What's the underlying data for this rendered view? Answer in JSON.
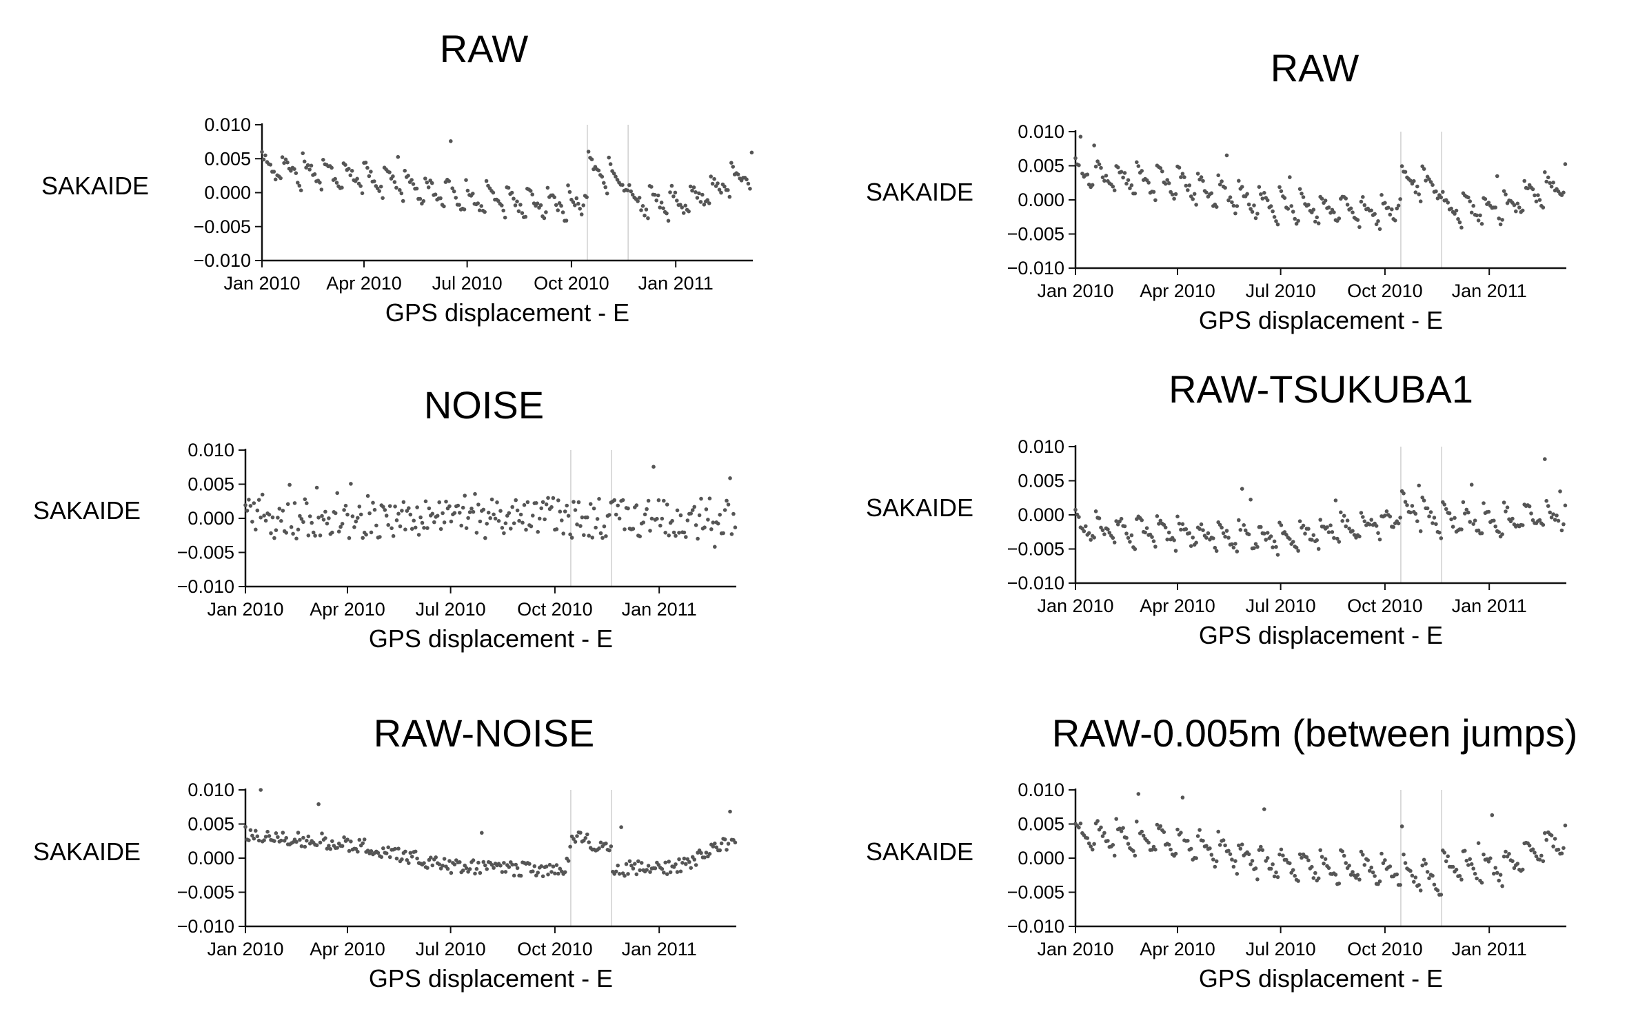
{
  "figure": {
    "panels": [
      {
        "id": "p1",
        "title": "RAW",
        "series_label": "SAKAIDE",
        "xlabel": "GPS displacement - E",
        "variant": "raw"
      },
      {
        "id": "p2",
        "title": "RAW",
        "series_label": "SAKAIDE",
        "xlabel": "GPS displacement - E",
        "variant": "raw"
      },
      {
        "id": "p3",
        "title": "NOISE",
        "series_label": "SAKAIDE",
        "xlabel": "GPS displacement - E",
        "variant": "noise"
      },
      {
        "id": "p4",
        "title": "RAW-TSUKUBA1",
        "series_label": "SAKAIDE",
        "xlabel": "GPS displacement - E",
        "variant": "tsukuba"
      },
      {
        "id": "p5",
        "title": "RAW-NOISE",
        "series_label": "SAKAIDE",
        "xlabel": "GPS displacement - E",
        "variant": "rawnoise"
      },
      {
        "id": "p6",
        "title": "RAW-0.005m (between jumps)",
        "series_label": "SAKAIDE",
        "xlabel": "GPS displacement - E",
        "variant": "shifted"
      }
    ]
  },
  "chart_data": [
    {
      "type": "scatter",
      "title": "RAW",
      "series": [
        {
          "name": "SAKAIDE"
        }
      ],
      "xlabel": "GPS displacement - E",
      "x_range": [
        "2010-01-01",
        "2011-03-10"
      ],
      "x_ticks": [
        "Jan 2010",
        "Apr 2010",
        "Jul 2010",
        "Oct 2010",
        "Jan 2011"
      ],
      "ylim": [
        -0.01,
        0.01
      ],
      "y_ticks": [
        "0.010",
        "0.005",
        "0.000",
        "−0.005",
        "−0.010"
      ],
      "jump_lines": [
        "2010-10-15",
        "2010-11-20"
      ],
      "trend": [
        {
          "date": "2010-01-01",
          "value": 0.0035
        },
        {
          "date": "2010-04-01",
          "value": 0.0022
        },
        {
          "date": "2010-07-01",
          "value": -0.0012
        },
        {
          "date": "2010-10-10",
          "value": -0.002
        },
        {
          "date": "2010-10-16",
          "value": 0.003
        },
        {
          "date": "2010-11-20",
          "value": 0.0015
        },
        {
          "date": "2010-11-21",
          "value": -0.0015
        },
        {
          "date": "2011-01-15",
          "value": -0.0015
        },
        {
          "date": "2011-03-10",
          "value": 0.003
        }
      ]
    },
    {
      "type": "scatter",
      "title": "RAW",
      "series": [
        {
          "name": "SAKAIDE"
        }
      ],
      "xlabel": "GPS displacement - E",
      "x_range": [
        "2010-01-01",
        "2011-03-10"
      ],
      "x_ticks": [
        "Jan 2010",
        "Apr 2010",
        "Jul 2010",
        "Oct 2010",
        "Jan 2011"
      ],
      "ylim": [
        -0.01,
        0.01
      ],
      "y_ticks": [
        "0.010",
        "0.005",
        "0.000",
        "−0.005",
        "−0.010"
      ],
      "jump_lines": [
        "2010-10-15",
        "2010-11-20"
      ],
      "trend": [
        {
          "date": "2010-01-01",
          "value": 0.0035
        },
        {
          "date": "2010-04-01",
          "value": 0.0022
        },
        {
          "date": "2010-07-01",
          "value": -0.0012
        },
        {
          "date": "2010-10-10",
          "value": -0.002
        },
        {
          "date": "2010-10-16",
          "value": 0.003
        },
        {
          "date": "2010-11-20",
          "value": 0.0015
        },
        {
          "date": "2010-11-21",
          "value": -0.0015
        },
        {
          "date": "2011-01-15",
          "value": -0.0015
        },
        {
          "date": "2011-03-10",
          "value": 0.003
        }
      ]
    },
    {
      "type": "scatter",
      "title": "NOISE",
      "series": [
        {
          "name": "SAKAIDE"
        }
      ],
      "xlabel": "GPS displacement - E",
      "x_range": [
        "2010-01-01",
        "2011-03-10"
      ],
      "x_ticks": [
        "Jan 2010",
        "Apr 2010",
        "Jul 2010",
        "Oct 2010",
        "Jan 2011"
      ],
      "ylim": [
        -0.01,
        0.01
      ],
      "y_ticks": [
        "0.010",
        "0.005",
        "0.000",
        "−0.005",
        "−0.010"
      ],
      "jump_lines": [
        "2010-10-15",
        "2010-11-20"
      ],
      "trend": [
        {
          "date": "2010-01-01",
          "value": 0.0
        },
        {
          "date": "2011-03-10",
          "value": 0.0
        }
      ]
    },
    {
      "type": "scatter",
      "title": "RAW-TSUKUBA1",
      "series": [
        {
          "name": "SAKAIDE"
        }
      ],
      "xlabel": "GPS displacement - E",
      "x_range": [
        "2010-01-01",
        "2011-03-10"
      ],
      "x_ticks": [
        "Jan 2010",
        "Apr 2010",
        "Jul 2010",
        "Oct 2010",
        "Jan 2011"
      ],
      "ylim": [
        -0.01,
        0.01
      ],
      "y_ticks": [
        "0.010",
        "0.005",
        "0.000",
        "−0.005",
        "−0.010"
      ],
      "jump_lines": [
        "2010-10-15",
        "2010-11-20"
      ],
      "trend": [
        {
          "date": "2010-01-01",
          "value": -0.002
        },
        {
          "date": "2010-04-01",
          "value": -0.003
        },
        {
          "date": "2010-07-01",
          "value": -0.0035
        },
        {
          "date": "2010-10-10",
          "value": -0.001
        },
        {
          "date": "2010-10-16",
          "value": 0.001
        },
        {
          "date": "2010-11-20",
          "value": -0.001
        },
        {
          "date": "2011-01-15",
          "value": -0.001
        },
        {
          "date": "2011-03-10",
          "value": 0.0
        }
      ]
    },
    {
      "type": "scatter",
      "title": "RAW-NOISE",
      "series": [
        {
          "name": "SAKAIDE"
        }
      ],
      "xlabel": "GPS displacement - E",
      "x_range": [
        "2010-01-01",
        "2011-03-10"
      ],
      "x_ticks": [
        "Jan 2010",
        "Apr 2010",
        "Jul 2010",
        "Oct 2010",
        "Jan 2011"
      ],
      "ylim": [
        -0.01,
        0.01
      ],
      "y_ticks": [
        "0.010",
        "0.005",
        "0.000",
        "−0.005",
        "−0.010"
      ],
      "jump_lines": [
        "2010-10-15",
        "2010-11-20"
      ],
      "trend": [
        {
          "date": "2010-01-01",
          "value": 0.0035
        },
        {
          "date": "2010-04-01",
          "value": 0.0022
        },
        {
          "date": "2010-07-01",
          "value": -0.0012
        },
        {
          "date": "2010-10-10",
          "value": -0.002
        },
        {
          "date": "2010-10-16",
          "value": 0.003
        },
        {
          "date": "2010-11-20",
          "value": 0.0015
        },
        {
          "date": "2010-11-21",
          "value": -0.0015
        },
        {
          "date": "2011-01-15",
          "value": -0.0015
        },
        {
          "date": "2011-03-10",
          "value": 0.003
        }
      ]
    },
    {
      "type": "scatter",
      "title": "RAW-0.005m (between jumps)",
      "series": [
        {
          "name": "SAKAIDE"
        }
      ],
      "xlabel": "GPS displacement - E",
      "x_range": [
        "2010-01-01",
        "2011-03-10"
      ],
      "x_ticks": [
        "Jan 2010",
        "Apr 2010",
        "Jul 2010",
        "Oct 2010",
        "Jan 2011"
      ],
      "ylim": [
        -0.01,
        0.01
      ],
      "y_ticks": [
        "0.010",
        "0.005",
        "0.000",
        "−0.005",
        "−0.010"
      ],
      "jump_lines": [
        "2010-10-15",
        "2010-11-20"
      ],
      "trend": [
        {
          "date": "2010-01-01",
          "value": 0.0035
        },
        {
          "date": "2010-04-01",
          "value": 0.0022
        },
        {
          "date": "2010-07-01",
          "value": -0.0012
        },
        {
          "date": "2010-10-10",
          "value": -0.002
        },
        {
          "date": "2010-10-16",
          "value": -0.002
        },
        {
          "date": "2010-11-20",
          "value": -0.0035
        },
        {
          "date": "2010-11-21",
          "value": -0.0015
        },
        {
          "date": "2011-01-15",
          "value": -0.0015
        },
        {
          "date": "2011-03-10",
          "value": 0.003
        }
      ]
    }
  ]
}
